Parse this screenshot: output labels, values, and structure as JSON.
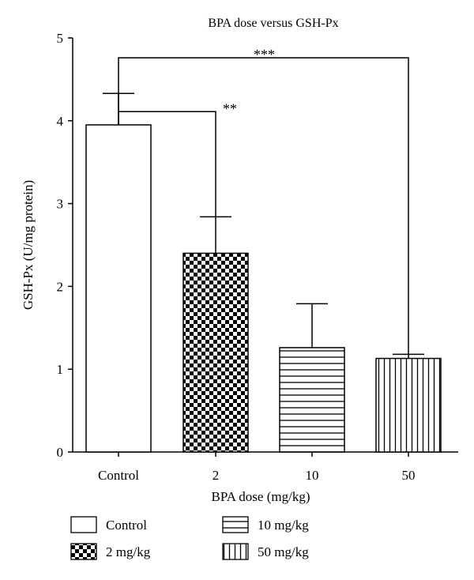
{
  "chart_data": {
    "type": "bar",
    "title": "BPA dose versus GSH-Px",
    "xlabel": "BPA dose (mg/kg)",
    "ylabel": "GSH-Px (U/mg protein)",
    "ylim": [
      0,
      5
    ],
    "yticks": [
      "0",
      "1",
      "2",
      "3",
      "4",
      "5"
    ],
    "categories": [
      "Control",
      "2",
      "10",
      "50"
    ],
    "values": [
      3.95,
      2.4,
      1.26,
      1.13
    ],
    "error_bars": [
      0.38,
      0.44,
      0.53,
      0.05
    ],
    "patterns": [
      "blank",
      "checker",
      "horizontal-lines",
      "vertical-lines"
    ],
    "significance": [
      {
        "from": "Control",
        "to": "2",
        "label": "**",
        "level": 4.11
      },
      {
        "from": "Control",
        "to": "50",
        "label": "***",
        "level": 4.76
      }
    ],
    "legend": {
      "placement": "bottom",
      "entries": [
        "Control",
        "2 mg/kg",
        "10 mg/kg",
        "50 mg/kg"
      ]
    },
    "grid": false
  }
}
